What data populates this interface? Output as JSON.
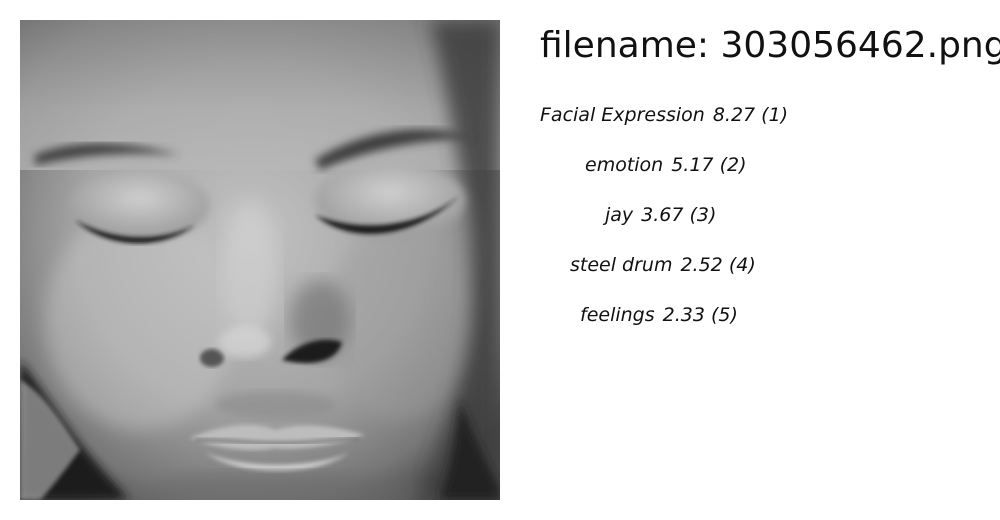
{
  "filename_line": "filename: 303056462.png",
  "image": {
    "subject": "grayscale close-up of a child's face with eyes closed"
  },
  "labels": [
    {
      "name": "Facial Expression",
      "score": "8.27 (1)"
    },
    {
      "name": "emotion",
      "score": "5.17 (2)"
    },
    {
      "name": "jay",
      "score": "3.67 (3)"
    },
    {
      "name": "steel drum",
      "score": "2.52 (4)"
    },
    {
      "name": "feelings",
      "score": "2.33 (5)"
    }
  ]
}
